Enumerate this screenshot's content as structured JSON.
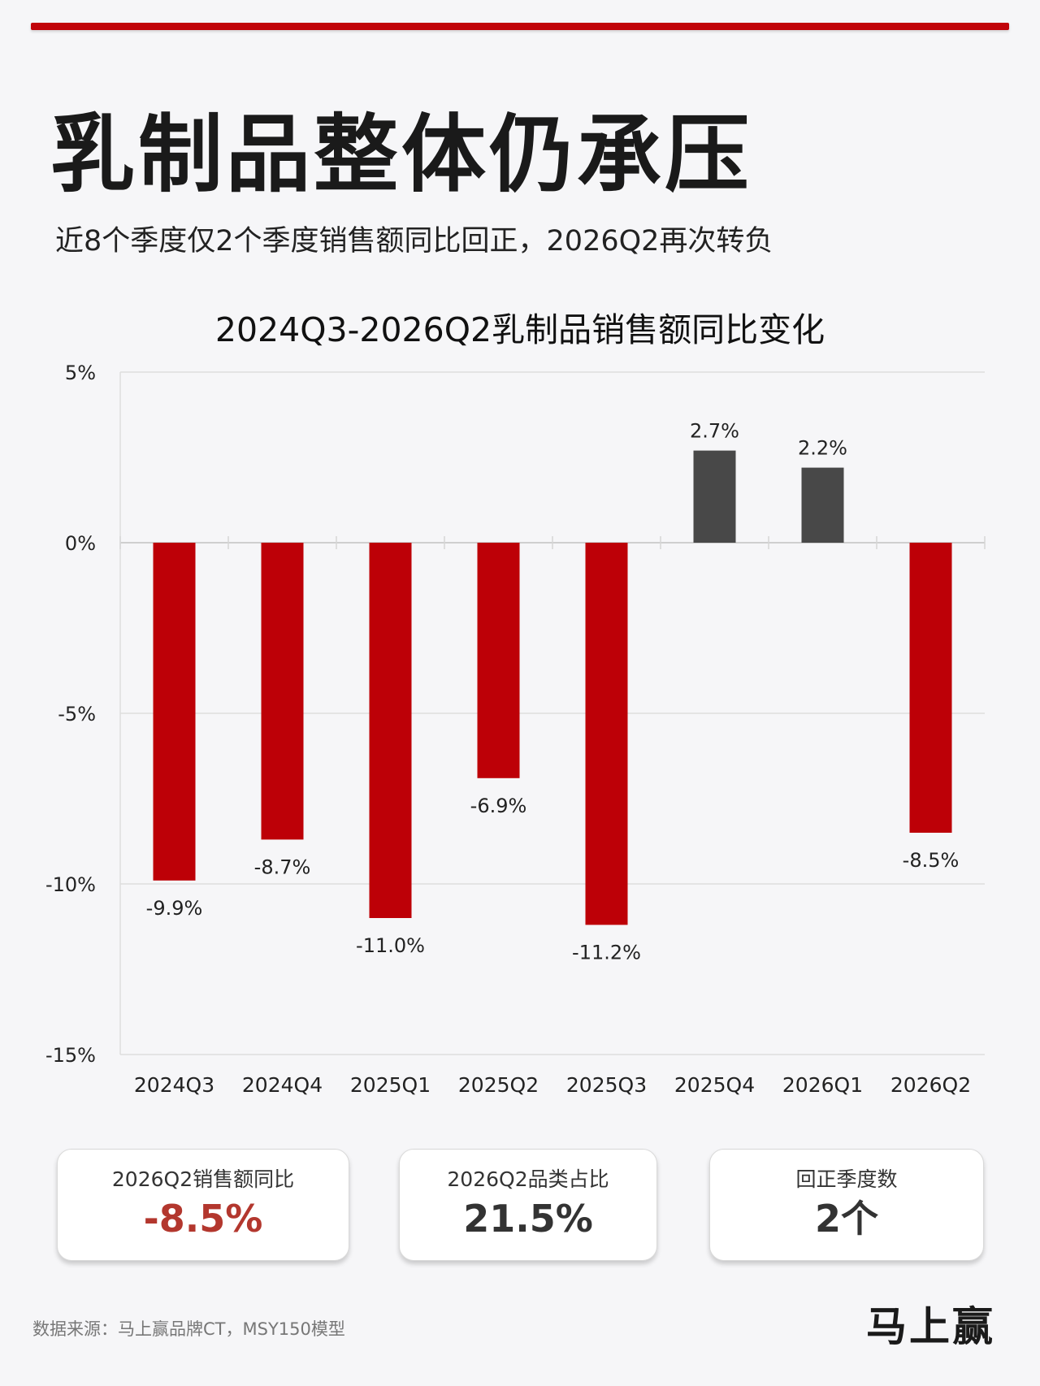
{
  "header": {
    "title": "乳制品整体仍承压",
    "subtitle": "近8个季度仅2个季度销售额同比回正，2026Q2再次转负"
  },
  "colors": {
    "accent": "#c1040a",
    "negative_bar": "#bd0007",
    "positive_bar": "#484848",
    "negative_kpi": "#b3372e",
    "neutral_kpi": "#333333"
  },
  "chart_data": {
    "type": "bar",
    "title": "2024Q3-2026Q2乳制品销售额同比变化",
    "categories": [
      "2024Q3",
      "2024Q4",
      "2025Q1",
      "2025Q2",
      "2025Q3",
      "2025Q4",
      "2026Q1",
      "2026Q2"
    ],
    "values": [
      -9.9,
      -8.7,
      -11.0,
      -6.9,
      -11.2,
      2.7,
      2.2,
      -8.5
    ],
    "value_labels": [
      "-9.9%",
      "-8.7%",
      "-11.0%",
      "-6.9%",
      "-11.2%",
      "2.7%",
      "2.2%",
      "-8.5%"
    ],
    "ylim": [
      -15,
      5
    ],
    "yticks": [
      5,
      0,
      -5,
      -10,
      -15
    ],
    "ytick_labels": [
      "5%",
      "0%",
      "-5%",
      "-10%",
      "-15%"
    ],
    "grid": true,
    "legend": "none"
  },
  "kpis": [
    {
      "label": "2026Q2销售额同比",
      "value": "-8.5%"
    },
    {
      "label": "2026Q2品类占比",
      "value": "21.5%"
    },
    {
      "label": "回正季度数",
      "value": "2个"
    }
  ],
  "footer": {
    "source": "数据来源：马上赢品牌CT，MSY150模型",
    "logo_text": "马上赢"
  }
}
